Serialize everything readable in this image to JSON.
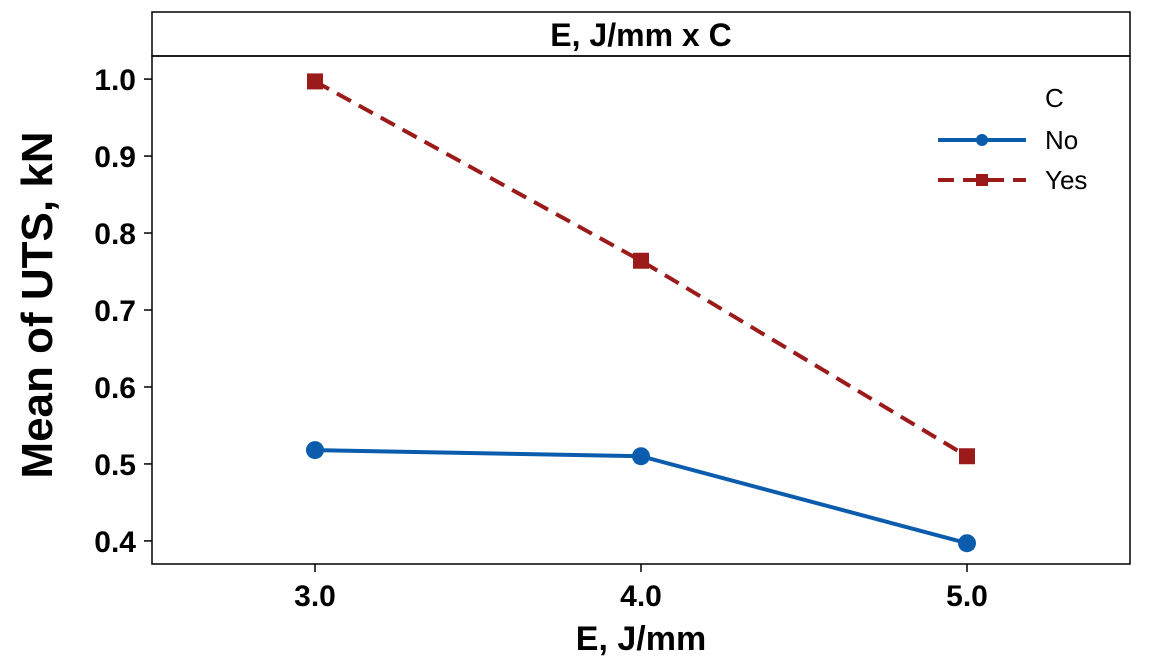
{
  "chart_data": {
    "type": "line",
    "title": "E, J/mm x C",
    "xlabel": "E, J/mm",
    "ylabel": "Mean of UTS, kN",
    "x": [
      3.0,
      4.0,
      5.0
    ],
    "x_tick_labels": [
      "3.0",
      "4.0",
      "5.0"
    ],
    "xlim": [
      2.5,
      5.5
    ],
    "ylim": [
      0.37,
      1.03
    ],
    "y_ticks": [
      0.4,
      0.5,
      0.6,
      0.7,
      0.8,
      0.9,
      1.0
    ],
    "y_tick_labels": [
      "0.4",
      "0.5",
      "0.6",
      "0.7",
      "0.8",
      "0.9",
      "1.0"
    ],
    "grid": false,
    "legend": {
      "title": "C",
      "placement": "top-right"
    },
    "series": [
      {
        "name": "No",
        "values": [
          0.518,
          0.51,
          0.397
        ],
        "color": "#0b5cad",
        "marker": "circle",
        "line": "solid"
      },
      {
        "name": "Yes",
        "values": [
          0.997,
          0.764,
          0.51
        ],
        "color": "#9b1a1a",
        "marker": "square",
        "line": "dashed"
      }
    ]
  }
}
